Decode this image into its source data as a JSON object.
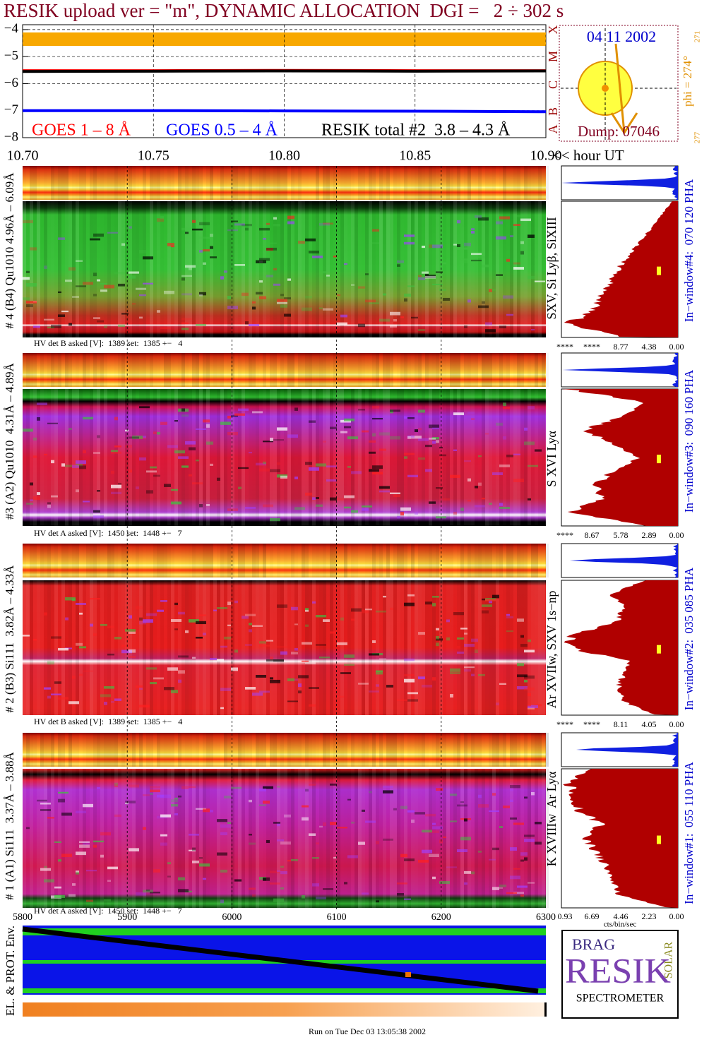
{
  "title": "RESIK upload ver = \"m\", DYNAMIC ALLOCATION  DGI =   2 ÷ 302 s",
  "chart_data": {
    "type": "line",
    "xlim": [
      10.7,
      10.9
    ],
    "xticks": [
      {
        "value": 10.7,
        "label": "10.70"
      },
      {
        "value": 10.75,
        "label": "10.75"
      },
      {
        "value": 10.8,
        "label": "10.80"
      },
      {
        "value": 10.85,
        "label": "10.85"
      },
      {
        "value": 10.9,
        "label": "10.90"
      }
    ],
    "x_label": "<< hour UT",
    "ylim": [
      -8,
      -3.82
    ],
    "yticks": [
      {
        "value": -8,
        "label": "−8"
      },
      {
        "value": -7,
        "label": "−7"
      },
      {
        "value": -6,
        "label": "−6"
      },
      {
        "value": -5,
        "label": "−5"
      },
      {
        "value": -4,
        "label": "−4"
      }
    ],
    "grid": true,
    "x": [
      10.7,
      10.75,
      10.8,
      10.85,
      10.9
    ],
    "series": [
      {
        "name": "GOES 1 – 8 Å",
        "color": "#ff0000",
        "values": [
          -5.52,
          -5.52,
          -5.51,
          -5.52,
          -5.52
        ]
      },
      {
        "name": "GOES 0.5 – 4 Å",
        "color": "#0000ff",
        "values": [
          -7.0,
          -7.0,
          -7.01,
          -7.02,
          -7.04
        ]
      },
      {
        "name": "RESIK total #2  3.8 – 4.3 Å",
        "color": "#000000",
        "values": [
          -5.55,
          -5.54,
          -5.53,
          -5.54,
          -5.53
        ]
      }
    ],
    "class_labels": [
      "A",
      "B",
      "C",
      "M",
      "X"
    ]
  },
  "sun": {
    "date": "04 11 2002",
    "phi": "phi = 274°",
    "phi_min": "271",
    "phi_max": "277",
    "dump": "Dump: 07046"
  },
  "panels": [
    {
      "label": "# 4 (B4) Qu1010 4.96Å – 6.09Å",
      "hv": "HV det B asked [V]:  1389 set:  1385 +−   4",
      "lines": "SXV, Si Lyβ, SiXIII",
      "window": "In−window#4:  070 120 PHA",
      "hist_ticks": [
        "****",
        "****",
        "8.77",
        "4.38",
        "0.00"
      ]
    },
    {
      "label": "#3 (A2) Qu1010  4.31Å – 4.89Å",
      "hv": "HV det A asked [V]:  1450 set:  1448 +−   7",
      "lines": "S XVI Lyα",
      "window": "In−window#3:  090 160 PHA",
      "hist_ticks": [
        "****",
        "8.67",
        "5.78",
        "2.89",
        "0.00"
      ]
    },
    {
      "label": "# 2 (B3) Si111  3.82Å – 4.33Å",
      "hv": "HV det B asked [V]:  1389 set:  1385 +−   4",
      "lines": "Ar XVIIw, SXV 1s−np",
      "window": "In−window#2:  035 085 PHA",
      "hist_ticks": [
        "****",
        "****",
        "8.11",
        "4.05",
        "0.00"
      ]
    },
    {
      "label": "# 1 (A1) Si111  3.37Å – 3.88Å",
      "hv": "HV det A asked [V]:  1450 set:  1448 +−   7",
      "lines": "K XVIIIw  Ar Lyα",
      "window": "In−window#1:  055 110 PHA",
      "hist_ticks": [
        "0.93",
        "6.69",
        "4.46",
        "2.23",
        "0.00"
      ]
    }
  ],
  "hist_unit": "cts/bin/sec",
  "bottom": {
    "label": "EL. & PROT. Env.",
    "xlim": [
      5800,
      6300
    ],
    "xticks": [
      5800,
      5900,
      6000,
      6100,
      6200,
      6300
    ]
  },
  "logo": {
    "brag": "BRAG",
    "resik": "RESIK",
    "solar": "SOLAR",
    "name": "SPECTROMETER"
  },
  "footer": "Run on Tue Dec 03 13:05:38 2002"
}
